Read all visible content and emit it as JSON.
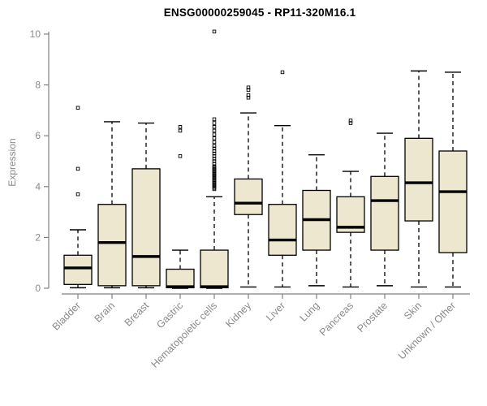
{
  "chart_data": {
    "type": "boxplot",
    "title": "ENSG00000259045 - RP11-320M16.1",
    "xlabel": "",
    "ylabel": "Expression",
    "ylim": [
      0,
      10
    ],
    "yticks": [
      0,
      2,
      4,
      6,
      8,
      10
    ],
    "grid": false,
    "legend": "none",
    "categories": [
      "Bladder",
      "Brain",
      "Breast",
      "Gastric",
      "Hematopoietic cells",
      "Kidney",
      "Liver",
      "Lung",
      "Pancreas",
      "Prostate",
      "Skin",
      "Unknown / Other"
    ],
    "series": [
      {
        "category": "Bladder",
        "whisker_low": 0.02,
        "q1": 0.15,
        "median": 0.8,
        "q3": 1.3,
        "whisker_high": 2.3,
        "outliers": [
          3.7,
          4.7,
          7.1
        ]
      },
      {
        "category": "Brain",
        "whisker_low": 0.02,
        "q1": 0.1,
        "median": 1.8,
        "q3": 3.3,
        "whisker_high": 6.55,
        "outliers": []
      },
      {
        "category": "Breast",
        "whisker_low": 0.02,
        "q1": 0.1,
        "median": 1.25,
        "q3": 4.7,
        "whisker_high": 6.5,
        "outliers": []
      },
      {
        "category": "Gastric",
        "whisker_low": 0.0,
        "q1": 0.02,
        "median": 0.06,
        "q3": 0.75,
        "whisker_high": 1.5,
        "outliers": [
          5.2,
          6.2,
          6.35
        ]
      },
      {
        "category": "Hematopoietic cells",
        "whisker_low": 0.0,
        "q1": 0.02,
        "median": 0.06,
        "q3": 1.5,
        "whisker_high": 3.6,
        "outliers": [
          3.9,
          3.95,
          4.0,
          4.05,
          4.1,
          4.15,
          4.2,
          4.25,
          4.3,
          4.35,
          4.4,
          4.45,
          4.5,
          4.55,
          4.6,
          4.65,
          4.7,
          4.75,
          4.8,
          4.9,
          5.0,
          5.1,
          5.2,
          5.3,
          5.4,
          5.5,
          5.6,
          5.75,
          5.9,
          6.05,
          6.2,
          6.35,
          6.5,
          6.65,
          10.1
        ]
      },
      {
        "category": "Kidney",
        "whisker_low": 0.05,
        "q1": 2.9,
        "median": 3.35,
        "q3": 4.3,
        "whisker_high": 6.9,
        "outliers": [
          7.5,
          7.6,
          7.8,
          7.9
        ]
      },
      {
        "category": "Liver",
        "whisker_low": 0.05,
        "q1": 1.3,
        "median": 1.9,
        "q3": 3.3,
        "whisker_high": 6.4,
        "outliers": [
          8.5
        ]
      },
      {
        "category": "Lung",
        "whisker_low": 0.1,
        "q1": 1.5,
        "median": 2.7,
        "q3": 3.85,
        "whisker_high": 5.25,
        "outliers": []
      },
      {
        "category": "Pancreas",
        "whisker_low": 0.05,
        "q1": 2.2,
        "median": 2.4,
        "q3": 3.6,
        "whisker_high": 4.6,
        "outliers": [
          6.5,
          6.6
        ]
      },
      {
        "category": "Prostate",
        "whisker_low": 0.1,
        "q1": 1.5,
        "median": 3.45,
        "q3": 4.4,
        "whisker_high": 6.1,
        "outliers": []
      },
      {
        "category": "Skin",
        "whisker_low": 0.05,
        "q1": 2.65,
        "median": 4.15,
        "q3": 5.9,
        "whisker_high": 8.55,
        "outliers": []
      },
      {
        "category": "Unknown / Other",
        "whisker_low": 0.05,
        "q1": 1.4,
        "median": 3.8,
        "q3": 5.4,
        "whisker_high": 8.5,
        "outliers": []
      }
    ],
    "style": {
      "box_fill": "#EDE7CF",
      "box_stroke": "#000000",
      "median_color": "#000000",
      "axis_color": "#808080",
      "label_color": "#8A8A8A",
      "title_color": "#000000",
      "background": "#FFFFFF"
    }
  }
}
